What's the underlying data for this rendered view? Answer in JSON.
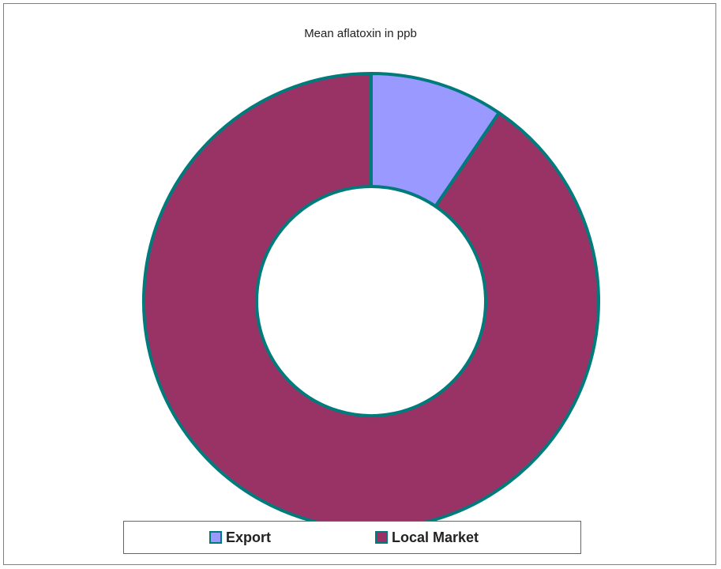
{
  "chart_data": {
    "type": "pie",
    "variant": "donut",
    "title": "Mean aflatoxin in ppb",
    "categories": [
      "Export",
      "Local Market"
    ],
    "values": [
      9.5,
      90.5
    ],
    "unit": "percent share",
    "colors": [
      "#9999ff",
      "#993366"
    ],
    "border_color": "#007b7b",
    "legend": {
      "position": "bottom",
      "entries": [
        "Export",
        "Local Market"
      ]
    }
  }
}
